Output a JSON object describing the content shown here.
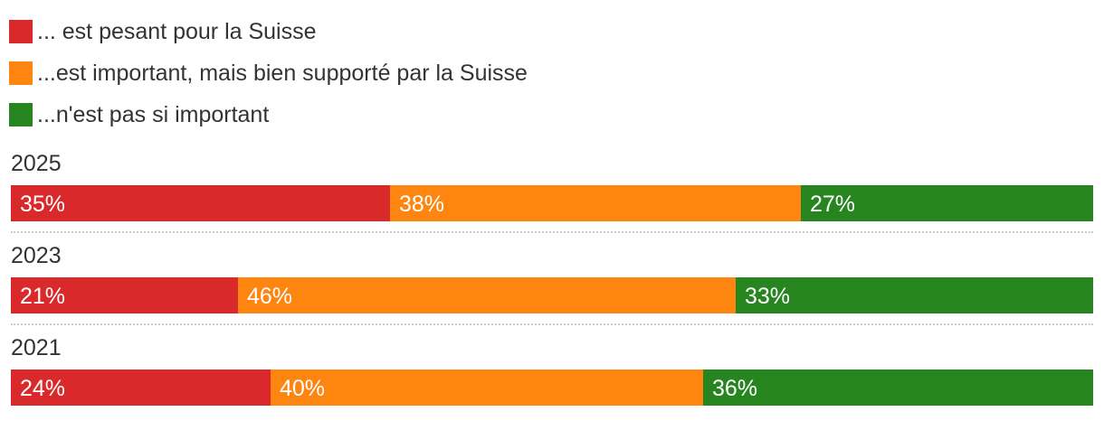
{
  "chart_data": {
    "type": "bar",
    "orientation": "horizontal",
    "stacked": "100%",
    "categories": [
      "2025",
      "2023",
      "2021"
    ],
    "series": [
      {
        "name": "... est pesant pour la Suisse",
        "color": "#d9292a",
        "values": [
          35,
          21,
          24
        ],
        "labels": [
          "35%",
          "21%",
          "24%"
        ]
      },
      {
        "name": "...est important, mais bien supporté par la Suisse",
        "color": "#fd8510",
        "values": [
          38,
          46,
          40
        ],
        "labels": [
          "38%",
          "46%",
          "40%"
        ]
      },
      {
        "name": "...n'est pas si important",
        "color": "#26851f",
        "values": [
          27,
          33,
          36
        ],
        "labels": [
          "27%",
          "33%",
          "36%"
        ]
      }
    ],
    "legend": "top-left",
    "grid": false
  }
}
